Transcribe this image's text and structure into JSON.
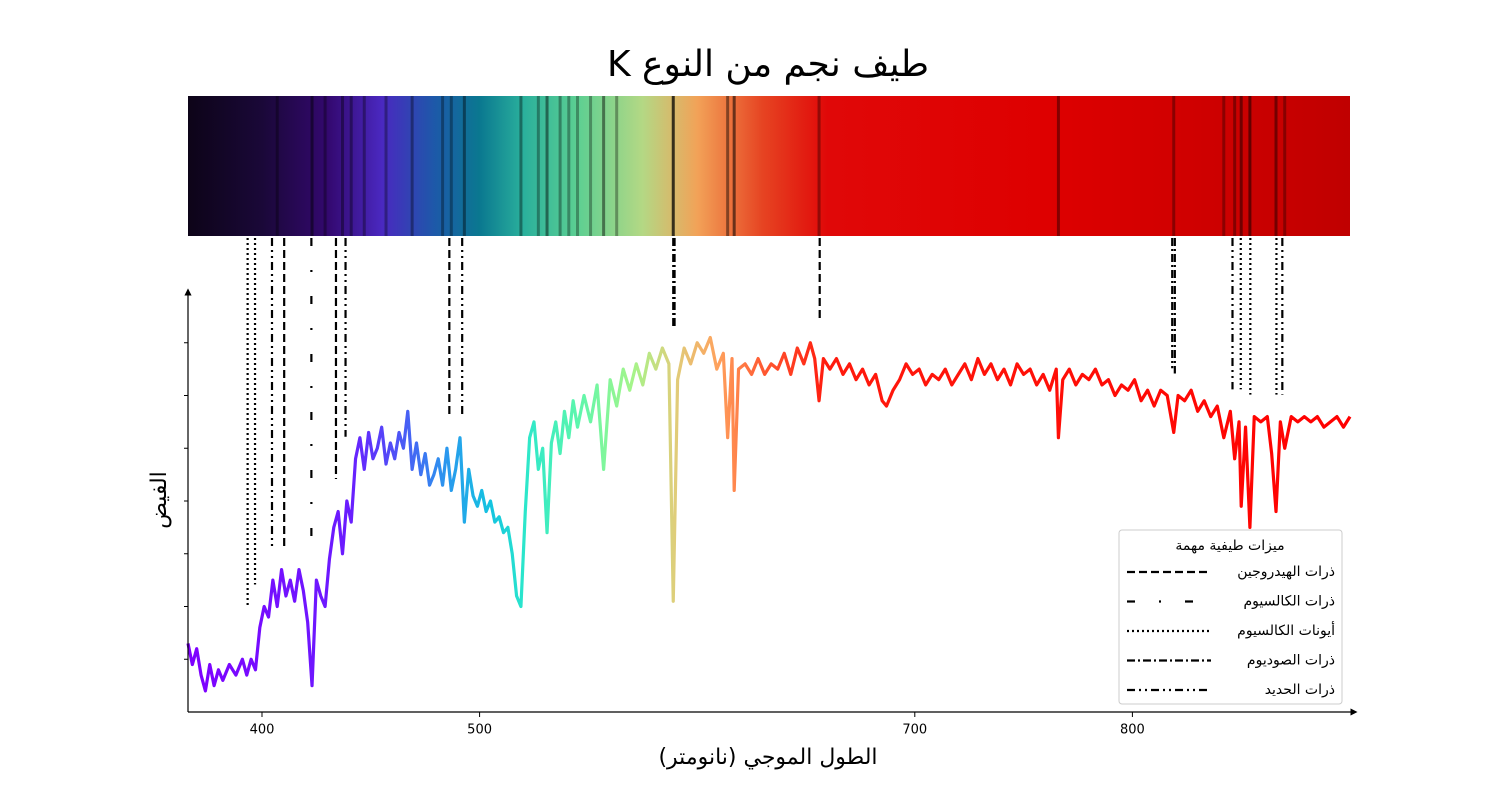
{
  "chart_data": {
    "type": "line",
    "title": "طيف نجم من النوع K",
    "xlabel": "الطول الموجي (نانومتر)",
    "ylabel": "الفيض",
    "colormap": "rainbow",
    "xlim": [
      366,
      900
    ],
    "xticks": [
      400,
      500,
      700,
      800
    ],
    "ylim": [
      0,
      8
    ],
    "yticks": [
      1,
      2,
      3,
      4,
      5,
      6,
      7
    ],
    "x": [
      366,
      368,
      370,
      372,
      374,
      376,
      378,
      380,
      382,
      385,
      388,
      391,
      393,
      395,
      397,
      399,
      401,
      403,
      405,
      407,
      409,
      411,
      413,
      415,
      417,
      419,
      421,
      423,
      425,
      427,
      429,
      431,
      433,
      435,
      437,
      439,
      441,
      443,
      445,
      447,
      449,
      451,
      453,
      455,
      457,
      459,
      461,
      463,
      465,
      467,
      469,
      471,
      473,
      475,
      477,
      479,
      481,
      483,
      485,
      487,
      489,
      491,
      493,
      495,
      497,
      499,
      501,
      503,
      505,
      507,
      509,
      511,
      513,
      515,
      517,
      519,
      521,
      523,
      525,
      527,
      529,
      531,
      533,
      535,
      537,
      539,
      541,
      543,
      545,
      548,
      551,
      554,
      557,
      560,
      563,
      566,
      569,
      572,
      575,
      578,
      581,
      584,
      587,
      589,
      591,
      594,
      597,
      600,
      603,
      606,
      609,
      612,
      614,
      616,
      617,
      619,
      622,
      625,
      628,
      631,
      634,
      637,
      640,
      643,
      646,
      649,
      652,
      654,
      656,
      658,
      661,
      664,
      667,
      670,
      673,
      676,
      679,
      682,
      685,
      687,
      690,
      693,
      696,
      699,
      702,
      705,
      708,
      711,
      714,
      717,
      720,
      723,
      726,
      729,
      732,
      735,
      738,
      741,
      744,
      747,
      750,
      753,
      756,
      759,
      762,
      765,
      766,
      768,
      771,
      774,
      777,
      780,
      783,
      786,
      789,
      792,
      795,
      798,
      801,
      804,
      807,
      810,
      813,
      816,
      819,
      821,
      824,
      827,
      830,
      833,
      836,
      839,
      842,
      845,
      847,
      849,
      850,
      852,
      854,
      856,
      859,
      862,
      864,
      866,
      868,
      870,
      873,
      876,
      879,
      882,
      885,
      888,
      891,
      894,
      897,
      900
    ],
    "values": [
      1.3,
      0.9,
      1.2,
      0.7,
      0.4,
      0.9,
      0.5,
      0.8,
      0.6,
      0.9,
      0.7,
      1.0,
      0.7,
      1.0,
      0.8,
      1.6,
      2.0,
      1.8,
      2.5,
      2.0,
      2.7,
      2.2,
      2.5,
      2.1,
      2.7,
      2.3,
      1.7,
      0.5,
      2.5,
      2.2,
      2.0,
      2.9,
      3.5,
      3.8,
      3.0,
      4.0,
      3.6,
      4.8,
      5.2,
      4.6,
      5.3,
      4.8,
      5.0,
      5.4,
      4.7,
      5.1,
      4.8,
      5.3,
      5.0,
      5.7,
      4.6,
      5.1,
      4.5,
      4.9,
      4.3,
      4.5,
      4.8,
      4.3,
      5.0,
      4.2,
      4.6,
      5.2,
      3.6,
      4.6,
      4.1,
      3.9,
      4.2,
      3.8,
      4.0,
      3.6,
      3.7,
      3.4,
      3.5,
      3.0,
      2.2,
      2.0,
      3.8,
      5.2,
      5.5,
      4.6,
      5.0,
      3.4,
      5.1,
      5.5,
      4.9,
      5.7,
      5.2,
      5.9,
      5.4,
      6.0,
      5.5,
      6.2,
      4.6,
      6.3,
      5.8,
      6.5,
      6.1,
      6.6,
      6.2,
      6.8,
      6.5,
      6.9,
      6.6,
      2.1,
      6.3,
      6.9,
      6.6,
      7.0,
      6.8,
      7.1,
      6.5,
      6.8,
      5.2,
      6.7,
      4.2,
      6.5,
      6.6,
      6.4,
      6.7,
      6.4,
      6.6,
      6.5,
      6.8,
      6.4,
      6.9,
      6.6,
      7.0,
      6.7,
      5.9,
      6.7,
      6.5,
      6.7,
      6.4,
      6.6,
      6.3,
      6.5,
      6.2,
      6.4,
      5.9,
      5.8,
      6.1,
      6.3,
      6.6,
      6.4,
      6.5,
      6.2,
      6.4,
      6.3,
      6.5,
      6.2,
      6.4,
      6.6,
      6.3,
      6.7,
      6.4,
      6.6,
      6.3,
      6.5,
      6.2,
      6.6,
      6.4,
      6.5,
      6.2,
      6.4,
      6.1,
      6.5,
      5.2,
      6.3,
      6.5,
      6.2,
      6.4,
      6.3,
      6.5,
      6.2,
      6.3,
      6.0,
      6.2,
      6.1,
      6.3,
      5.9,
      6.1,
      5.8,
      6.1,
      6.0,
      5.3,
      6.0,
      5.9,
      6.1,
      5.7,
      5.9,
      5.6,
      5.8,
      5.2,
      5.7,
      4.8,
      5.5,
      3.9,
      5.4,
      3.5,
      5.6,
      5.5,
      5.6,
      4.9,
      3.8,
      5.5,
      5.0,
      5.6,
      5.5,
      5.6,
      5.5,
      5.6,
      5.4,
      5.5,
      5.6,
      5.4,
      5.6
    ],
    "legend": {
      "title": "ميزات طيفية مهمة",
      "loc": "lower right"
    },
    "features": [
      {
        "name": "ذرات الهيدروجين",
        "style": "dashed",
        "wavelengths": [
          410.2,
          434.0,
          486.1,
          656.3
        ]
      },
      {
        "name": "ذرات الكالسيوم",
        "style": "loosely-dashdotted",
        "wavelengths": [
          422.7
        ]
      },
      {
        "name": "أيونات الكالسيوم",
        "style": "dotted",
        "wavelengths": [
          393.4,
          396.8,
          849.8,
          854.2,
          866.2
        ]
      },
      {
        "name": "ذرات الصوديوم",
        "style": "dashdot",
        "wavelengths": [
          589.0,
          589.6,
          818.3,
          819.5
        ]
      },
      {
        "name": "ذرات الحديد",
        "style": "dashdotdotted",
        "wavelengths": [
          404.6,
          438.4,
          492.0,
          846.0,
          868.9
        ]
      }
    ]
  }
}
